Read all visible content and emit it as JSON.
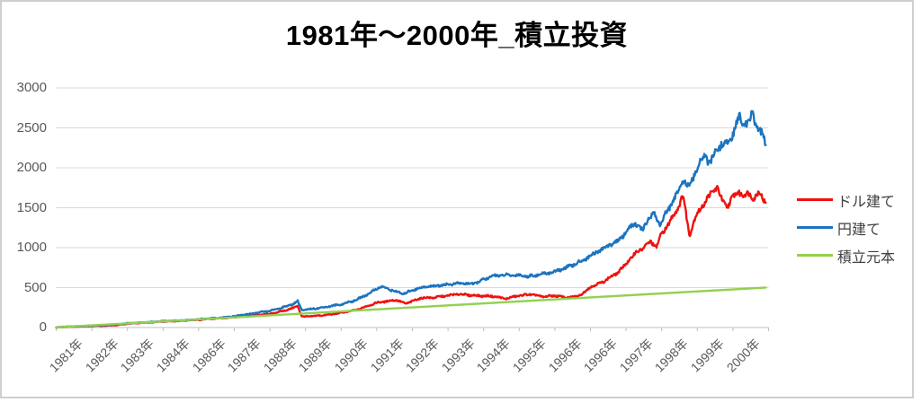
{
  "chart_data": {
    "type": "line",
    "title": "1981年〜2000年_積立投資",
    "legend_position": "right",
    "grid": "horizontal",
    "y_axis": {
      "min": 0,
      "max": 3000,
      "ticks": [
        0,
        500,
        1000,
        1500,
        2000,
        2500,
        3000
      ]
    },
    "x_axis": {
      "range_years": [
        1981,
        2001
      ],
      "labels": [
        "1981年",
        "1982年",
        "1983年",
        "1984年",
        "1986年",
        "1987年",
        "1988年",
        "1989年",
        "1990年",
        "1991年",
        "1992年",
        "1993年",
        "1994年",
        "1995年",
        "1996年",
        "1996年",
        "1997年",
        "1998年",
        "1999年",
        "2000年"
      ]
    },
    "sampling_note": "dense (approx weekly) noisy series; anchor points [year, value] read from the plot",
    "series": [
      {
        "name": "ドル建て",
        "color": "#ED130F",
        "noisy": true,
        "points": [
          [
            1981.0,
            2
          ],
          [
            1981.4,
            10
          ],
          [
            1981.8,
            16
          ],
          [
            1982.0,
            20
          ],
          [
            1982.4,
            24
          ],
          [
            1982.7,
            30
          ],
          [
            1983.0,
            48
          ],
          [
            1983.5,
            62
          ],
          [
            1984.0,
            76
          ],
          [
            1984.4,
            82
          ],
          [
            1984.8,
            92
          ],
          [
            1985.0,
            98
          ],
          [
            1985.5,
            112
          ],
          [
            1986.0,
            130
          ],
          [
            1986.5,
            152
          ],
          [
            1987.0,
            170
          ],
          [
            1987.3,
            200
          ],
          [
            1987.6,
            235
          ],
          [
            1987.78,
            272
          ],
          [
            1987.9,
            135
          ],
          [
            1988.1,
            140
          ],
          [
            1988.4,
            150
          ],
          [
            1988.7,
            162
          ],
          [
            1989.0,
            185
          ],
          [
            1989.4,
            215
          ],
          [
            1989.8,
            280
          ],
          [
            1990.0,
            310
          ],
          [
            1990.3,
            330
          ],
          [
            1990.55,
            345
          ],
          [
            1990.8,
            300
          ],
          [
            1991.0,
            330
          ],
          [
            1991.25,
            370
          ],
          [
            1991.6,
            375
          ],
          [
            1992.0,
            400
          ],
          [
            1992.3,
            420
          ],
          [
            1992.6,
            405
          ],
          [
            1993.0,
            395
          ],
          [
            1993.3,
            390
          ],
          [
            1993.6,
            360
          ],
          [
            1994.0,
            400
          ],
          [
            1994.3,
            415
          ],
          [
            1994.7,
            385
          ],
          [
            1995.0,
            400
          ],
          [
            1995.3,
            375
          ],
          [
            1995.6,
            385
          ],
          [
            1995.8,
            430
          ],
          [
            1996.0,
            510
          ],
          [
            1996.3,
            560
          ],
          [
            1996.6,
            640
          ],
          [
            1996.8,
            700
          ],
          [
            1997.0,
            800
          ],
          [
            1997.3,
            950
          ],
          [
            1997.5,
            1000
          ],
          [
            1997.7,
            1080
          ],
          [
            1997.85,
            1000
          ],
          [
            1998.0,
            1180
          ],
          [
            1998.2,
            1300
          ],
          [
            1998.45,
            1500
          ],
          [
            1998.6,
            1650
          ],
          [
            1998.78,
            1160
          ],
          [
            1998.9,
            1320
          ],
          [
            1999.0,
            1430
          ],
          [
            1999.2,
            1560
          ],
          [
            1999.45,
            1720
          ],
          [
            1999.55,
            1760
          ],
          [
            1999.7,
            1580
          ],
          [
            1999.85,
            1520
          ],
          [
            2000.0,
            1630
          ],
          [
            2000.15,
            1710
          ],
          [
            2000.3,
            1640
          ],
          [
            2000.45,
            1690
          ],
          [
            2000.6,
            1610
          ],
          [
            2000.75,
            1700
          ],
          [
            2000.85,
            1620
          ],
          [
            2000.92,
            1560
          ]
        ]
      },
      {
        "name": "円建て",
        "color": "#1B74BF",
        "noisy": true,
        "points": [
          [
            1981.0,
            2
          ],
          [
            1981.4,
            11
          ],
          [
            1981.8,
            18
          ],
          [
            1982.0,
            25
          ],
          [
            1982.4,
            30
          ],
          [
            1982.7,
            38
          ],
          [
            1983.0,
            52
          ],
          [
            1983.5,
            66
          ],
          [
            1984.0,
            80
          ],
          [
            1984.4,
            86
          ],
          [
            1984.8,
            96
          ],
          [
            1985.0,
            104
          ],
          [
            1985.5,
            118
          ],
          [
            1986.0,
            142
          ],
          [
            1986.4,
            168
          ],
          [
            1987.0,
            208
          ],
          [
            1987.3,
            245
          ],
          [
            1987.6,
            285
          ],
          [
            1987.78,
            330
          ],
          [
            1987.9,
            215
          ],
          [
            1988.1,
            228
          ],
          [
            1988.5,
            252
          ],
          [
            1989.0,
            290
          ],
          [
            1989.4,
            340
          ],
          [
            1989.8,
            430
          ],
          [
            1990.0,
            490
          ],
          [
            1990.15,
            510
          ],
          [
            1990.4,
            470
          ],
          [
            1990.75,
            420
          ],
          [
            1991.0,
            470
          ],
          [
            1991.3,
            505
          ],
          [
            1991.6,
            520
          ],
          [
            1992.0,
            540
          ],
          [
            1992.4,
            555
          ],
          [
            1992.7,
            545
          ],
          [
            1993.0,
            600
          ],
          [
            1993.3,
            650
          ],
          [
            1993.6,
            655
          ],
          [
            1994.0,
            655
          ],
          [
            1994.25,
            640
          ],
          [
            1994.6,
            665
          ],
          [
            1995.0,
            700
          ],
          [
            1995.2,
            730
          ],
          [
            1995.5,
            780
          ],
          [
            1995.8,
            845
          ],
          [
            1996.0,
            900
          ],
          [
            1996.3,
            975
          ],
          [
            1996.6,
            1050
          ],
          [
            1996.8,
            1090
          ],
          [
            1997.0,
            1200
          ],
          [
            1997.25,
            1310
          ],
          [
            1997.45,
            1210
          ],
          [
            1997.6,
            1350
          ],
          [
            1997.78,
            1430
          ],
          [
            1997.95,
            1290
          ],
          [
            1998.15,
            1450
          ],
          [
            1998.3,
            1560
          ],
          [
            1998.5,
            1750
          ],
          [
            1998.62,
            1860
          ],
          [
            1998.78,
            1740
          ],
          [
            1998.95,
            1950
          ],
          [
            1999.1,
            2080
          ],
          [
            1999.2,
            2150
          ],
          [
            1999.35,
            2060
          ],
          [
            1999.5,
            2180
          ],
          [
            1999.7,
            2320
          ],
          [
            1999.85,
            2280
          ],
          [
            2000.0,
            2430
          ],
          [
            2000.18,
            2640
          ],
          [
            2000.3,
            2540
          ],
          [
            2000.45,
            2600
          ],
          [
            2000.55,
            2650
          ],
          [
            2000.7,
            2500
          ],
          [
            2000.82,
            2430
          ],
          [
            2000.92,
            2270
          ]
        ]
      },
      {
        "name": "積立元本",
        "color": "#92D050",
        "noisy": false,
        "points": [
          [
            1981.0,
            2
          ],
          [
            2000.92,
            500
          ]
        ]
      }
    ],
    "colors": {
      "gridline": "#D9D9D9",
      "axis": "#BFBFBF",
      "tick_label": "#595959",
      "legend_text": "#404040",
      "title": "#000000"
    }
  }
}
